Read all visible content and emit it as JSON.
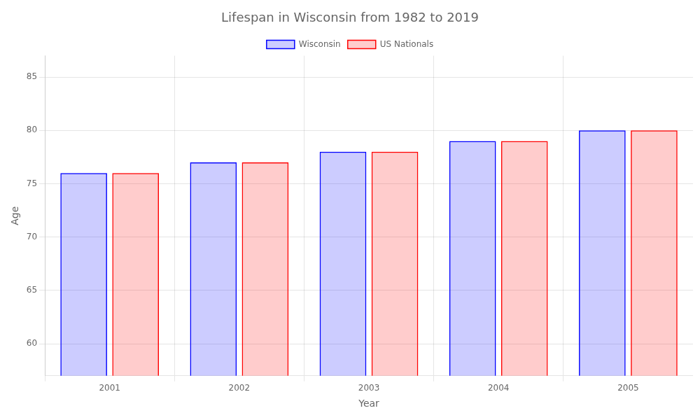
{
  "chart_data": {
    "type": "bar",
    "title": "Lifespan in Wisconsin from 1982 to 2019",
    "xlabel": "Year",
    "ylabel": "Age",
    "categories": [
      "2001",
      "2002",
      "2003",
      "2004",
      "2005"
    ],
    "series": [
      {
        "name": "Wisconsin",
        "color": "#0000ff",
        "values": [
          76,
          77,
          78,
          79,
          80
        ]
      },
      {
        "name": "US Nationals",
        "color": "#ff0000",
        "values": [
          76,
          77,
          78,
          79,
          80
        ]
      }
    ],
    "ylim": [
      57,
      87
    ],
    "yticks": [
      60,
      65,
      70,
      75,
      80,
      85
    ],
    "grid": true,
    "legend": "top"
  }
}
